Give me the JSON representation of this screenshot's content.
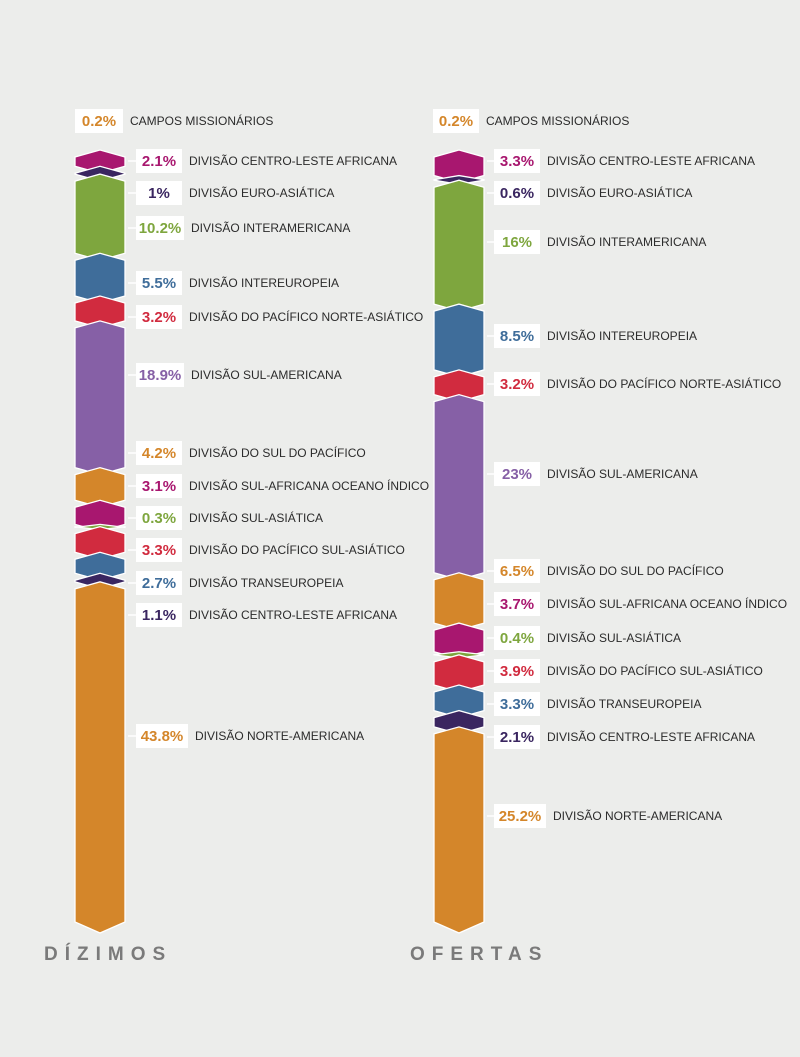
{
  "chart_data": [
    {
      "type": "stacked-column",
      "title": "DÍZIMOS",
      "segments": [
        {
          "label": "CAMPOS MISSIONÁRIOS",
          "value": 0.2,
          "text": "0.2%",
          "color": "#d4862a"
        },
        {
          "label": "DIVISÃO CENTRO-LESTE AFRICANA",
          "value": 2.1,
          "text": "2.1%",
          "color": "#a8176f"
        },
        {
          "label": "DIVISÃO EURO-ASIÁTICA",
          "value": 1,
          "text": "1%",
          "color": "#3a2660"
        },
        {
          "label": "DIVISÃO INTERAMERICANA",
          "value": 10.2,
          "text": "10.2%",
          "color": "#7ea63e"
        },
        {
          "label": "DIVISÃO INTEREUROPEIA",
          "value": 5.5,
          "text": "5.5%",
          "color": "#3f6d9a"
        },
        {
          "label": "DIVISÃO DO PACÍFICO NORTE-ASIÁTICO",
          "value": 3.2,
          "text": "3.2%",
          "color": "#d12b3f"
        },
        {
          "label": "DIVISÃO SUL-AMERICANA",
          "value": 18.9,
          "text": "18.9%",
          "color": "#8660a6"
        },
        {
          "label": "DIVISÃO DO SUL DO PACÍFICO",
          "value": 4.2,
          "text": "4.2%",
          "color": "#d4862a"
        },
        {
          "label": "DIVISÃO SUL-AFRICANA OCEANO ÍNDICO",
          "value": 3.1,
          "text": "3.1%",
          "color": "#a8176f"
        },
        {
          "label": "DIVISÃO SUL-ASIÁTICA",
          "value": 0.3,
          "text": "0.3%",
          "color": "#7ea63e"
        },
        {
          "label": "DIVISÃO DO PACÍFICO SUL-ASIÁTICO",
          "value": 3.3,
          "text": "3.3%",
          "color": "#d12b3f"
        },
        {
          "label": "DIVISÃO TRANSEUROPEIA",
          "value": 2.7,
          "text": "2.7%",
          "color": "#3f6d9a"
        },
        {
          "label": "DIVISÃO CENTRO-LESTE AFRICANA",
          "value": 1.1,
          "text": "1.1%",
          "color": "#3a2660"
        },
        {
          "label": "DIVISÃO NORTE-AMERICANA",
          "value": 43.8,
          "text": "43.8%",
          "color": "#d4862a"
        }
      ]
    },
    {
      "type": "stacked-column",
      "title": "OFERTAS",
      "segments": [
        {
          "label": "CAMPOS MISSIONÁRIOS",
          "value": 0.2,
          "text": "0.2%",
          "color": "#d4862a"
        },
        {
          "label": "DIVISÃO CENTRO-LESTE AFRICANA",
          "value": 3.3,
          "text": "3.3%",
          "color": "#a8176f"
        },
        {
          "label": "DIVISÃO EURO-ASIÁTICA",
          "value": 0.6,
          "text": "0.6%",
          "color": "#3a2660"
        },
        {
          "label": "DIVISÃO INTERAMERICANA",
          "value": 16,
          "text": "16%",
          "color": "#7ea63e"
        },
        {
          "label": "DIVISÃO INTEREUROPEIA",
          "value": 8.5,
          "text": "8.5%",
          "color": "#3f6d9a"
        },
        {
          "label": "DIVISÃO DO PACÍFICO NORTE-ASIÁTICO",
          "value": 3.2,
          "text": "3.2%",
          "color": "#d12b3f"
        },
        {
          "label": "DIVISÃO SUL-AMERICANA",
          "value": 23,
          "text": "23%",
          "color": "#8660a6"
        },
        {
          "label": "DIVISÃO DO SUL DO PACÍFICO",
          "value": 6.5,
          "text": "6.5%",
          "color": "#d4862a"
        },
        {
          "label": "DIVISÃO SUL-AFRICANA OCEANO ÍNDICO",
          "value": 3.7,
          "text": "3.7%",
          "color": "#a8176f"
        },
        {
          "label": "DIVISÃO SUL-ASIÁTICA",
          "value": 0.4,
          "text": "0.4%",
          "color": "#7ea63e"
        },
        {
          "label": "DIVISÃO DO PACÍFICO SUL-ASIÁTICO",
          "value": 3.9,
          "text": "3.9%",
          "color": "#d12b3f"
        },
        {
          "label": "DIVISÃO TRANSEUROPEIA",
          "value": 3.3,
          "text": "3.3%",
          "color": "#3f6d9a"
        },
        {
          "label": "DIVISÃO CENTRO-LESTE AFRICANA",
          "value": 2.1,
          "text": "2.1%",
          "color": "#3a2660"
        },
        {
          "label": "DIVISÃO NORTE-AMERICANA",
          "value": 25.2,
          "text": "25.2%",
          "color": "#d4862a"
        }
      ]
    }
  ]
}
